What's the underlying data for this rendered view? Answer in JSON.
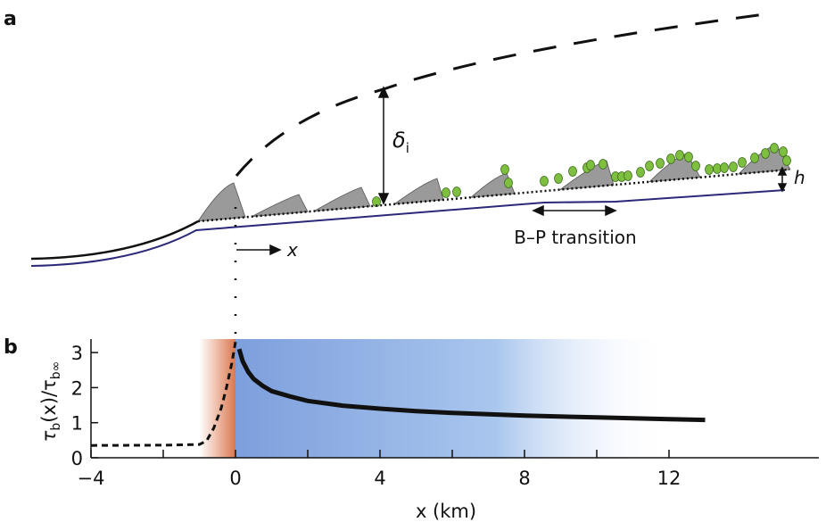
{
  "panel_a": {
    "label": "a",
    "delta_label": "δ",
    "delta_sub": "i",
    "h_label": "h",
    "x_label": "x",
    "bp_label": "B–P transition",
    "colors": {
      "bed": "#2b2a7a",
      "wedge": "#9a9a9a",
      "sediment": "#7fbf3f",
      "ice": "#111111"
    }
  },
  "panel_b": {
    "label": "b"
  },
  "chart_data": {
    "type": "line",
    "title": "",
    "xlabel": "x (km)",
    "ylabel": "τb(x)/τb∞",
    "ylabel_parts": {
      "main": "τ",
      "sub": "b",
      "mid": "(x)/τ",
      "sub2": "b∞"
    },
    "xlim": [
      -4,
      14
    ],
    "ylim": [
      0,
      3.4
    ],
    "xticks": [
      -4,
      0,
      4,
      8,
      12
    ],
    "xminor_ticks": [
      -2,
      2,
      6,
      10
    ],
    "yticks": [
      0,
      1,
      2,
      3
    ],
    "grid": false,
    "shading": [
      {
        "region": [
          -1,
          0
        ],
        "color": "#e07a50"
      },
      {
        "region": [
          0,
          12
        ],
        "color": "#7fa3e0"
      }
    ],
    "series": [
      {
        "style": "dashed",
        "color": "#111111",
        "x": [
          -4,
          -2,
          -1,
          -0.8,
          -0.6,
          -0.4,
          -0.25,
          -0.1,
          0
        ],
        "y": [
          0.35,
          0.36,
          0.38,
          0.48,
          0.85,
          1.4,
          2.0,
          2.7,
          3.3
        ]
      },
      {
        "style": "solid",
        "color": "#111111",
        "x": [
          0.1,
          0.2,
          0.35,
          0.5,
          0.75,
          1,
          1.5,
          2,
          3,
          4,
          5,
          6,
          8,
          10,
          12,
          13
        ],
        "y": [
          3.1,
          2.75,
          2.45,
          2.25,
          2.05,
          1.9,
          1.75,
          1.62,
          1.48,
          1.4,
          1.33,
          1.28,
          1.2,
          1.15,
          1.1,
          1.08
        ]
      }
    ]
  }
}
